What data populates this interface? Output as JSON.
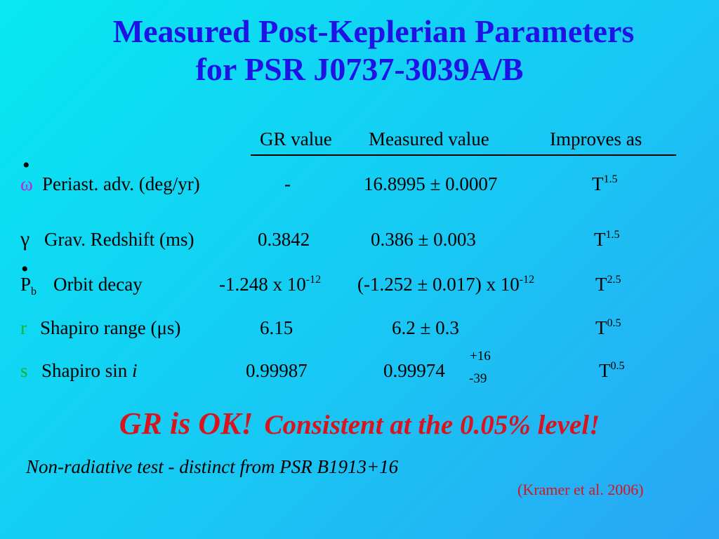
{
  "title": {
    "line1": "Measured Post-Keplerian Parameters",
    "line2": "for PSR J0737-3039A/B"
  },
  "table": {
    "headers": {
      "gr": "GR value",
      "measured": "Measured value",
      "improves": "Improves as"
    },
    "rows": [
      {
        "symbol": "ω",
        "symbol_dot": "•",
        "symbol_color": "#c81ee0",
        "label": "Periast. adv. (deg/yr)",
        "gr": "-",
        "measured": "16.8995 ± 0.0007",
        "improves_base": "T",
        "improves_exp": "1.5"
      },
      {
        "symbol": "γ",
        "label": "Grav. Redshift (ms)",
        "gr": "0.3842",
        "measured": "0.386 ± 0.003",
        "improves_base": "T",
        "improves_exp": "1.5"
      },
      {
        "symbol": "P",
        "symbol_sub": "b",
        "symbol_dot": "•",
        "label": "Orbit decay",
        "gr_base": "-1.248 x 10",
        "gr_exp": "-12",
        "measured_base": "(-1.252 ± 0.017) x 10",
        "measured_exp": "-12",
        "improves_base": "T",
        "improves_exp": "2.5"
      },
      {
        "symbol": "r",
        "symbol_color": "#14b424",
        "label": "Shapiro range (μs)",
        "gr": "6.15",
        "measured": "6.2 ± 0.3",
        "improves_base": "T",
        "improves_exp": "0.5"
      },
      {
        "symbol": "s",
        "symbol_color": "#14b424",
        "label_prefix": "Shapiro sin ",
        "label_italic": "i",
        "gr": "0.99987",
        "measured": "0.99974",
        "measured_plus": "+16",
        "measured_minus": "-39",
        "improves_base": "T",
        "improves_exp": "0.5"
      }
    ]
  },
  "conclusion": {
    "part1": "GR is OK!",
    "part2": "Consistent at the 0.05% level!"
  },
  "note": "Non-radiative test - distinct from PSR B1913+16",
  "citation": "(Kramer et al. 2006)"
}
